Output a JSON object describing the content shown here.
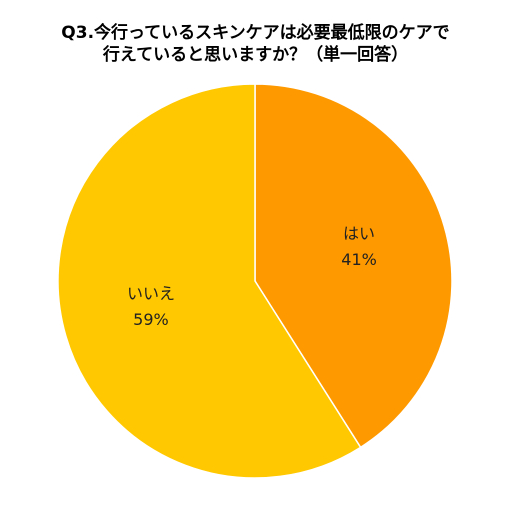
{
  "chart_data": {
    "type": "pie",
    "title_lines": [
      "Q3.今行っているスキンケアは必要最低限のケアで",
      "行えていると思いますか？（単一回答）"
    ],
    "categories": [
      "はい",
      "いいえ"
    ],
    "values": [
      41,
      59
    ],
    "value_labels": [
      "41%",
      "59%"
    ],
    "colors": [
      "#FF9900",
      "#FFC800"
    ],
    "start_angle_deg": 0,
    "direction": "clockwise",
    "legend": "none",
    "grid": false
  }
}
